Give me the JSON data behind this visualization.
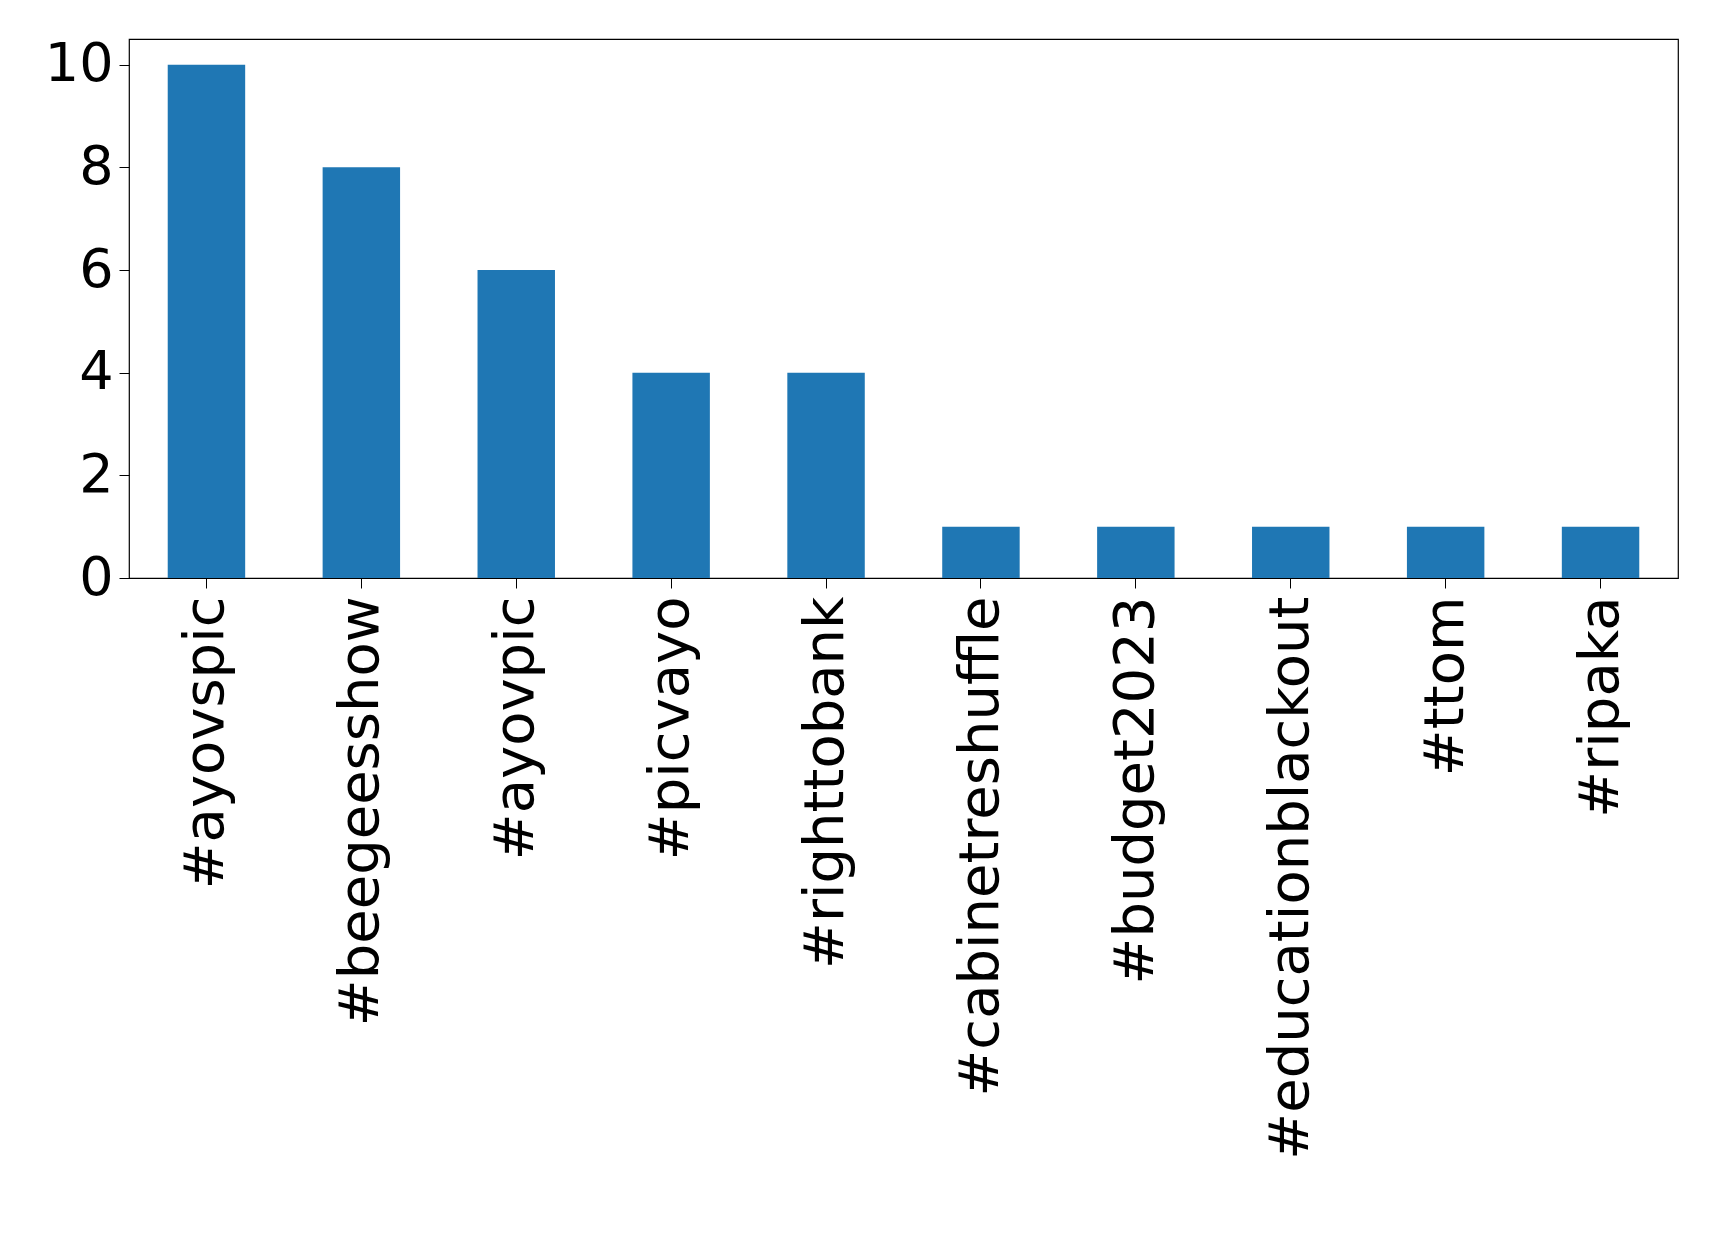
{
  "chart_data": {
    "type": "bar",
    "categories": [
      "#ayovspic",
      "#beegeesshow",
      "#ayovpic",
      "#picvayo",
      "#righttobank",
      "#cabinetreshuffle",
      "#budget2023",
      "#educationblackout",
      "#ttom",
      "#ripaka"
    ],
    "values": [
      10,
      8,
      6,
      4,
      4,
      1,
      1,
      1,
      1,
      1
    ],
    "color": "#1f77b4",
    "ylim": [
      0,
      10.5
    ],
    "yticks": [
      0,
      2,
      4,
      6,
      8,
      10
    ],
    "grid": false
  }
}
